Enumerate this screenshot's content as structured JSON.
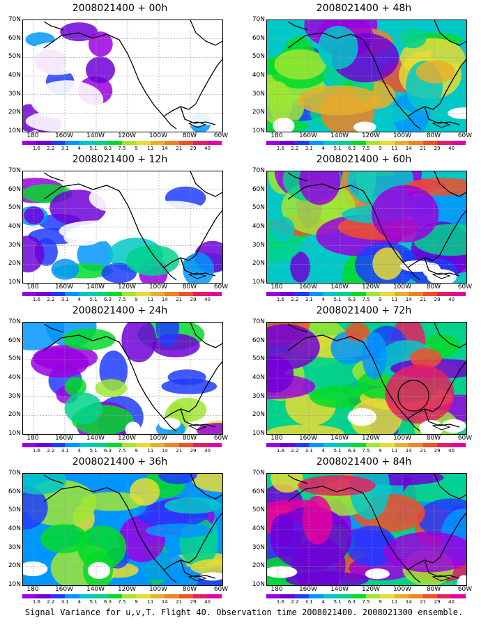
{
  "panels": [
    {
      "title": "2008021400 + 00h"
    },
    {
      "title": "2008021400 + 48h"
    },
    {
      "title": "2008021400 + 12h"
    },
    {
      "title": "2008021400 + 60h"
    },
    {
      "title": "2008021400 + 24h"
    },
    {
      "title": "2008021400 + 72h"
    },
    {
      "title": "2008021400 + 36h"
    },
    {
      "title": "2008021400 + 84h"
    }
  ],
  "axes": {
    "lat_labels": [
      "70N",
      "60N",
      "50N",
      "40N",
      "30N",
      "20N",
      "10N"
    ],
    "lon_labels": [
      "180",
      "160W",
      "140W",
      "120W",
      "100W",
      "80W",
      "60W"
    ]
  },
  "colorbar": {
    "labels": [
      "1.6",
      "2.2",
      "3.1",
      "4",
      "5.1",
      "6.3",
      "7.5",
      "9",
      "11",
      "14",
      "21",
      "29",
      "40"
    ],
    "colors": [
      "#9a00e0",
      "#6e00d8",
      "#1e3cff",
      "#0096ff",
      "#00c8c8",
      "#00d28c",
      "#00dc28",
      "#a0e632",
      "#e6dc32",
      "#e6af2d",
      "#f08228",
      "#f05028",
      "#e61e64",
      "#e600a0"
    ]
  },
  "caption": "Signal Variance for u,v,T. Flight 40. Observation time 2008021400. 2008021300 ensemble."
}
